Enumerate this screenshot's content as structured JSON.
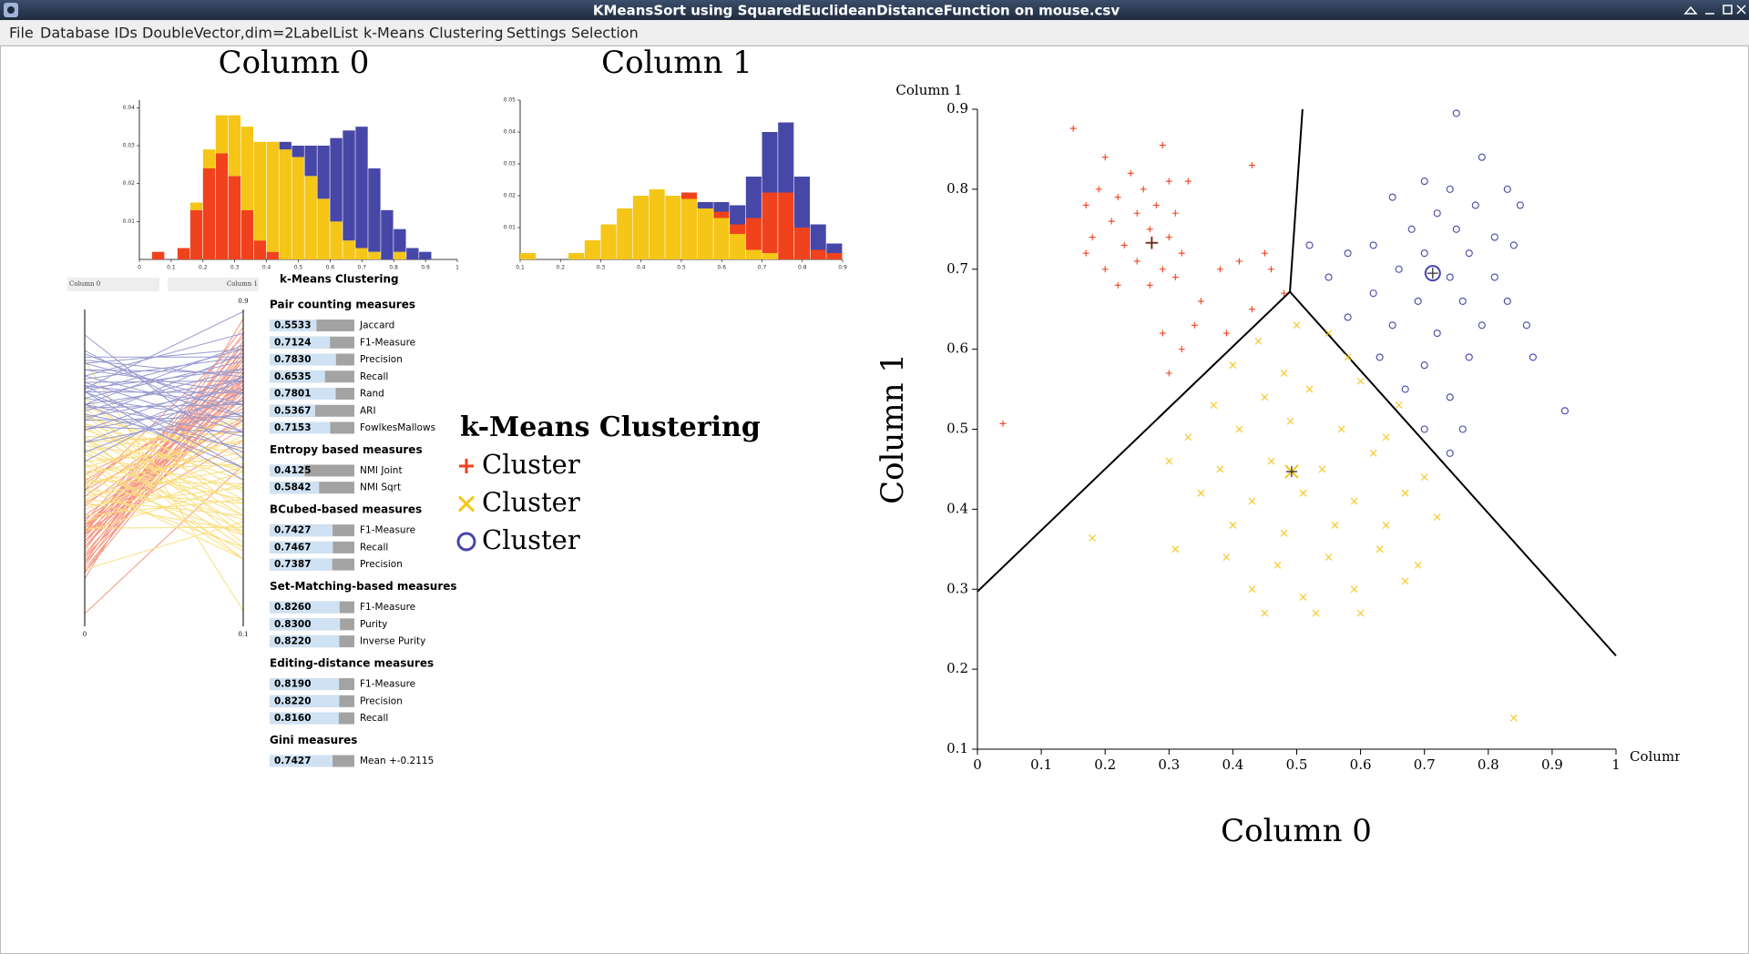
{
  "window": {
    "title": "KMeansSort using SquaredEuclideanDistanceFunction on mouse.csv"
  },
  "menu": [
    "File",
    "Database IDs",
    "DoubleVector,dim=2",
    "LabelList",
    "k-Means Clustering",
    "Settings",
    "Selection"
  ],
  "histograms": [
    {
      "title": "Column 0",
      "bins": [
        0,
        0.04,
        0.08,
        0.12,
        0.16,
        0.2,
        0.24,
        0.28,
        0.32,
        0.36,
        0.4,
        0.44,
        0.48,
        0.52,
        0.56,
        0.6,
        0.64,
        0.68,
        0.72,
        0.76,
        0.8,
        0.84,
        0.88,
        0.92,
        0.96,
        1
      ],
      "xlim": [
        0,
        1
      ],
      "xticks": [
        0,
        0.1,
        0.2,
        0.3,
        0.4,
        0.5,
        0.6,
        0.7,
        0.8,
        0.9,
        1
      ],
      "ylim": [
        0,
        0.042
      ],
      "yticks": [
        0.01,
        0.02,
        0.03,
        0.04
      ],
      "series": [
        {
          "color": "#f0421c",
          "values": [
            0,
            0.002,
            0,
            0.003,
            0.013,
            0.024,
            0.028,
            0.022,
            0.013,
            0.005,
            0.002,
            0,
            0,
            0,
            0,
            0,
            0,
            0,
            0,
            0,
            0,
            0,
            0,
            0,
            0
          ]
        },
        {
          "color": "#f5c518",
          "values": [
            0,
            0,
            0,
            0,
            0.002,
            0.005,
            0.01,
            0.016,
            0.022,
            0.026,
            0.029,
            0.029,
            0.027,
            0.022,
            0.016,
            0.01,
            0.005,
            0.003,
            0.002,
            0,
            0.002,
            0,
            0,
            0,
            0
          ]
        },
        {
          "color": "#4747a8",
          "values": [
            0,
            0,
            0,
            0,
            0,
            0,
            0,
            0,
            0,
            0,
            0,
            0.002,
            0.003,
            0.008,
            0.014,
            0.022,
            0.029,
            0.032,
            0.022,
            0.013,
            0.006,
            0.003,
            0.002,
            0,
            0
          ]
        }
      ]
    },
    {
      "title": "Column 1",
      "bins": [
        0.1,
        0.14,
        0.18,
        0.22,
        0.26,
        0.3,
        0.34,
        0.38,
        0.42,
        0.46,
        0.5,
        0.54,
        0.58,
        0.62,
        0.66,
        0.7,
        0.74,
        0.78,
        0.82,
        0.86,
        0.9
      ],
      "xlim": [
        0.1,
        0.9
      ],
      "xticks": [
        0.1,
        0.2,
        0.3,
        0.4,
        0.5,
        0.6,
        0.7,
        0.8,
        0.9
      ],
      "ylim": [
        0,
        0.05
      ],
      "yticks": [
        0.01,
        0.02,
        0.03,
        0.04,
        0.05
      ],
      "series": [
        {
          "color": "#f5c518",
          "values": [
            0.002,
            0,
            0,
            0.002,
            0.006,
            0.011,
            0.016,
            0.02,
            0.022,
            0.02,
            0.019,
            0.016,
            0.013,
            0.008,
            0.003,
            0.002,
            0,
            0,
            0,
            0
          ]
        },
        {
          "color": "#f0421c",
          "values": [
            0,
            0,
            0,
            0,
            0,
            0,
            0,
            0,
            0,
            0,
            0.002,
            0,
            0.002,
            0.003,
            0.01,
            0.019,
            0.021,
            0.01,
            0.003,
            0.002
          ]
        },
        {
          "color": "#4747a8",
          "values": [
            0,
            0,
            0,
            0,
            0,
            0,
            0,
            0,
            0,
            0,
            0,
            0.002,
            0.003,
            0.006,
            0.013,
            0.019,
            0.022,
            0.016,
            0.008,
            0.003
          ]
        }
      ]
    }
  ],
  "parallel": {
    "axes": [
      {
        "label": "Column 0",
        "ticks": [
          0
        ]
      },
      {
        "label": "Column 1",
        "ticks": [
          0.9,
          0.1
        ]
      }
    ]
  },
  "measures": {
    "title": "k-Means Clustering",
    "sections": [
      {
        "title": "Pair counting measures",
        "items": [
          {
            "value": 0.5533,
            "label": "0.5533",
            "name": "Jaccard"
          },
          {
            "value": 0.7124,
            "label": "0.7124",
            "name": "F1-Measure"
          },
          {
            "value": 0.783,
            "label": "0.7830",
            "name": "Precision"
          },
          {
            "value": 0.6535,
            "label": "0.6535",
            "name": "Recall"
          },
          {
            "value": 0.7801,
            "label": "0.7801",
            "name": "Rand"
          },
          {
            "value": 0.5367,
            "label": "0.5367",
            "name": "ARI"
          },
          {
            "value": 0.7153,
            "label": "0.7153",
            "name": "FowlkesMallows"
          }
        ]
      },
      {
        "title": "Entropy based measures",
        "items": [
          {
            "value": 0.4125,
            "label": "0.4125",
            "name": "NMI Joint"
          },
          {
            "value": 0.5842,
            "label": "0.5842",
            "name": "NMI Sqrt"
          }
        ]
      },
      {
        "title": "BCubed-based measures",
        "items": [
          {
            "value": 0.7427,
            "label": "0.7427",
            "name": "F1-Measure"
          },
          {
            "value": 0.7467,
            "label": "0.7467",
            "name": "Recall"
          },
          {
            "value": 0.7387,
            "label": "0.7387",
            "name": "Precision"
          }
        ]
      },
      {
        "title": "Set-Matching-based measures",
        "items": [
          {
            "value": 0.826,
            "label": "0.8260",
            "name": "F1-Measure"
          },
          {
            "value": 0.83,
            "label": "0.8300",
            "name": "Purity"
          },
          {
            "value": 0.822,
            "label": "0.8220",
            "name": "Inverse Purity"
          }
        ]
      },
      {
        "title": "Editing-distance measures",
        "items": [
          {
            "value": 0.819,
            "label": "0.8190",
            "name": "F1-Measure"
          },
          {
            "value": 0.822,
            "label": "0.8220",
            "name": "Precision"
          },
          {
            "value": 0.816,
            "label": "0.8160",
            "name": "Recall"
          }
        ]
      },
      {
        "title": "Gini measures",
        "items": [
          {
            "value": 0.7427,
            "label": "0.7427",
            "name": "Mean +-0.2115"
          }
        ]
      }
    ]
  },
  "legend": {
    "title": "k-Means Clustering"
  },
  "scatter": {
    "x_axis_title": "Column 0",
    "y_axis_title": "Column 1",
    "x_axis_name": "Column 0",
    "y_axis_name": "Column 1",
    "xlim": [
      0,
      1
    ],
    "ylim": [
      0.1,
      0.9
    ],
    "xticks": [
      0,
      0.1,
      0.2,
      0.3,
      0.4,
      0.5,
      0.6,
      0.7,
      0.8,
      0.9,
      1
    ],
    "yticks": [
      0.1,
      0.2,
      0.3,
      0.4,
      0.5,
      0.6,
      0.7,
      0.8,
      0.9
    ],
    "clusters": [
      {
        "name": "Cluster",
        "marker": "plus",
        "color": "#f0421c",
        "center": [
          0.273,
          0.733
        ],
        "x": [
          0.15,
          0.2,
          0.24,
          0.29,
          0.19,
          0.22,
          0.26,
          0.3,
          0.33,
          0.17,
          0.21,
          0.25,
          0.28,
          0.31,
          0.18,
          0.23,
          0.27,
          0.3,
          0.17,
          0.2,
          0.25,
          0.29,
          0.32,
          0.22,
          0.27,
          0.31,
          0.38,
          0.35,
          0.41,
          0.45,
          0.43,
          0.34,
          0.29,
          0.32,
          0.3,
          0.43,
          0.04,
          0.48,
          0.39,
          0.46
        ],
        "y": [
          0.876,
          0.84,
          0.82,
          0.855,
          0.8,
          0.79,
          0.8,
          0.81,
          0.81,
          0.78,
          0.76,
          0.77,
          0.78,
          0.77,
          0.74,
          0.73,
          0.75,
          0.74,
          0.72,
          0.7,
          0.71,
          0.7,
          0.72,
          0.68,
          0.68,
          0.69,
          0.7,
          0.66,
          0.71,
          0.72,
          0.65,
          0.63,
          0.62,
          0.6,
          0.57,
          0.83,
          0.507,
          0.67,
          0.62,
          0.7
        ]
      },
      {
        "name": "Cluster",
        "marker": "cross",
        "color": "#f5c518",
        "center": [
          0.492,
          0.447
        ],
        "x": [
          0.5,
          0.44,
          0.55,
          0.4,
          0.48,
          0.58,
          0.37,
          0.45,
          0.52,
          0.6,
          0.66,
          0.33,
          0.41,
          0.49,
          0.57,
          0.64,
          0.3,
          0.38,
          0.46,
          0.54,
          0.62,
          0.7,
          0.35,
          0.43,
          0.51,
          0.59,
          0.67,
          0.4,
          0.48,
          0.56,
          0.64,
          0.72,
          0.31,
          0.39,
          0.47,
          0.55,
          0.63,
          0.69,
          0.43,
          0.51,
          0.59,
          0.67,
          0.45,
          0.53,
          0.6,
          0.18,
          0.84
        ],
        "y": [
          0.63,
          0.61,
          0.62,
          0.58,
          0.57,
          0.59,
          0.53,
          0.54,
          0.55,
          0.56,
          0.53,
          0.49,
          0.5,
          0.51,
          0.5,
          0.49,
          0.46,
          0.45,
          0.46,
          0.45,
          0.47,
          0.44,
          0.42,
          0.41,
          0.42,
          0.41,
          0.42,
          0.38,
          0.37,
          0.38,
          0.38,
          0.39,
          0.35,
          0.34,
          0.33,
          0.34,
          0.35,
          0.33,
          0.3,
          0.29,
          0.3,
          0.31,
          0.27,
          0.27,
          0.27,
          0.364,
          0.139
        ]
      },
      {
        "name": "Cluster",
        "marker": "circle",
        "color": "#4747a8",
        "center": [
          0.713,
          0.695
        ],
        "x": [
          0.75,
          0.79,
          0.7,
          0.74,
          0.83,
          0.65,
          0.72,
          0.78,
          0.85,
          0.68,
          0.75,
          0.81,
          0.62,
          0.7,
          0.77,
          0.84,
          0.52,
          0.58,
          0.66,
          0.74,
          0.81,
          0.55,
          0.62,
          0.69,
          0.76,
          0.83,
          0.58,
          0.65,
          0.72,
          0.79,
          0.86,
          0.63,
          0.7,
          0.77,
          0.87,
          0.67,
          0.74,
          0.7,
          0.76,
          0.92,
          0.74
        ],
        "y": [
          0.895,
          0.84,
          0.81,
          0.8,
          0.8,
          0.79,
          0.77,
          0.78,
          0.78,
          0.75,
          0.75,
          0.74,
          0.73,
          0.72,
          0.72,
          0.73,
          0.73,
          0.72,
          0.7,
          0.69,
          0.69,
          0.69,
          0.67,
          0.66,
          0.66,
          0.66,
          0.64,
          0.63,
          0.62,
          0.63,
          0.63,
          0.59,
          0.58,
          0.59,
          0.59,
          0.55,
          0.54,
          0.5,
          0.5,
          0.523,
          0.47
        ]
      }
    ]
  }
}
